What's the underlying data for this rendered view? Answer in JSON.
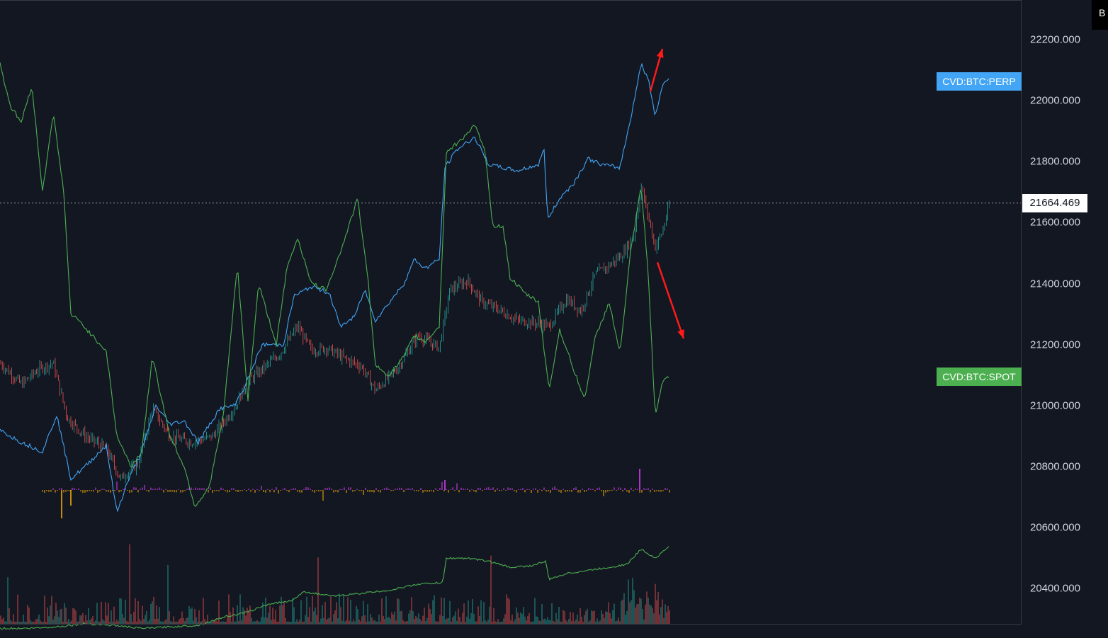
{
  "chart_data": {
    "type": "line",
    "y_axis": {
      "ticks": [
        "22200.000",
        "22000.000",
        "21800.000",
        "21600.000",
        "21400.000",
        "21200.000",
        "21000.000",
        "20800.000",
        "20600.000",
        "20400.000"
      ],
      "range": [
        20250,
        22330
      ]
    },
    "last_price": {
      "value": 21664.469,
      "label": "21664.469"
    },
    "corner_label": "B",
    "price_candles": {
      "type": "candlestick",
      "series_color_up": "#26a69a",
      "series_color_down": "#ef5350",
      "approx_close_path": [
        [
          0,
          21140
        ],
        [
          30,
          21070
        ],
        [
          55,
          21120
        ],
        [
          75,
          21140
        ],
        [
          95,
          20960
        ],
        [
          120,
          20900
        ],
        [
          150,
          20860
        ],
        [
          170,
          20760
        ],
        [
          195,
          20810
        ],
        [
          215,
          20990
        ],
        [
          240,
          20900
        ],
        [
          270,
          20880
        ],
        [
          300,
          20900
        ],
        [
          330,
          20990
        ],
        [
          350,
          21080
        ],
        [
          370,
          21120
        ],
        [
          395,
          21170
        ],
        [
          420,
          21260
        ],
        [
          440,
          21180
        ],
        [
          460,
          21190
        ],
        [
          490,
          21150
        ],
        [
          510,
          21130
        ],
        [
          530,
          21050
        ],
        [
          560,
          21120
        ],
        [
          590,
          21230
        ],
        [
          620,
          21190
        ],
        [
          635,
          21380
        ],
        [
          660,
          21410
        ],
        [
          680,
          21340
        ],
        [
          700,
          21320
        ],
        [
          730,
          21280
        ],
        [
          760,
          21270
        ],
        [
          775,
          21260
        ],
        [
          800,
          21350
        ],
        [
          820,
          21310
        ],
        [
          840,
          21430
        ],
        [
          860,
          21460
        ],
        [
          880,
          21500
        ],
        [
          895,
          21560
        ],
        [
          905,
          21720
        ],
        [
          925,
          21520
        ],
        [
          935,
          21570
        ],
        [
          945,
          21660
        ]
      ]
    },
    "series": [
      {
        "name": "CVD:BTC:PERP",
        "color": "#42a5f5",
        "points": [
          [
            0,
            20920
          ],
          [
            30,
            20880
          ],
          [
            60,
            20850
          ],
          [
            80,
            20970
          ],
          [
            100,
            20760
          ],
          [
            120,
            20800
          ],
          [
            150,
            20870
          ],
          [
            165,
            20650
          ],
          [
            180,
            20750
          ],
          [
            200,
            20850
          ],
          [
            220,
            21000
          ],
          [
            240,
            20940
          ],
          [
            260,
            20950
          ],
          [
            280,
            20880
          ],
          [
            310,
            20990
          ],
          [
            330,
            21000
          ],
          [
            345,
            21060
          ],
          [
            370,
            21200
          ],
          [
            400,
            21200
          ],
          [
            415,
            21360
          ],
          [
            440,
            21390
          ],
          [
            465,
            21370
          ],
          [
            480,
            21260
          ],
          [
            500,
            21290
          ],
          [
            515,
            21380
          ],
          [
            530,
            21280
          ],
          [
            550,
            21340
          ],
          [
            570,
            21400
          ],
          [
            585,
            21480
          ],
          [
            600,
            21450
          ],
          [
            620,
            21480
          ],
          [
            628,
            21780
          ],
          [
            645,
            21840
          ],
          [
            670,
            21880
          ],
          [
            690,
            21790
          ],
          [
            710,
            21780
          ],
          [
            730,
            21770
          ],
          [
            760,
            21790
          ],
          [
            768,
            21840
          ],
          [
            773,
            21610
          ],
          [
            790,
            21680
          ],
          [
            810,
            21730
          ],
          [
            830,
            21810
          ],
          [
            850,
            21790
          ],
          [
            875,
            21780
          ],
          [
            890,
            21940
          ],
          [
            905,
            22120
          ],
          [
            915,
            22070
          ],
          [
            925,
            21950
          ],
          [
            935,
            22050
          ],
          [
            945,
            22080
          ]
        ]
      },
      {
        "name": "CVD:BTC:SPOT",
        "color": "#4caf50",
        "points": [
          [
            0,
            22120
          ],
          [
            15,
            21980
          ],
          [
            30,
            21930
          ],
          [
            45,
            22050
          ],
          [
            60,
            21700
          ],
          [
            75,
            21960
          ],
          [
            90,
            21700
          ],
          [
            100,
            21300
          ],
          [
            115,
            21270
          ],
          [
            130,
            21230
          ],
          [
            150,
            21180
          ],
          [
            165,
            20900
          ],
          [
            185,
            20800
          ],
          [
            200,
            20850
          ],
          [
            215,
            21160
          ],
          [
            240,
            20900
          ],
          [
            260,
            20800
          ],
          [
            275,
            20670
          ],
          [
            295,
            20730
          ],
          [
            315,
            20960
          ],
          [
            335,
            21460
          ],
          [
            350,
            21020
          ],
          [
            365,
            21400
          ],
          [
            390,
            21200
          ],
          [
            405,
            21450
          ],
          [
            420,
            21550
          ],
          [
            440,
            21400
          ],
          [
            460,
            21380
          ],
          [
            480,
            21500
          ],
          [
            505,
            21680
          ],
          [
            520,
            21400
          ],
          [
            530,
            21130
          ],
          [
            550,
            21100
          ],
          [
            570,
            21160
          ],
          [
            585,
            21230
          ],
          [
            600,
            21210
          ],
          [
            620,
            21260
          ],
          [
            630,
            21830
          ],
          [
            650,
            21870
          ],
          [
            670,
            21920
          ],
          [
            685,
            21830
          ],
          [
            695,
            21590
          ],
          [
            710,
            21590
          ],
          [
            720,
            21420
          ],
          [
            740,
            21370
          ],
          [
            760,
            21340
          ],
          [
            775,
            21050
          ],
          [
            790,
            21250
          ],
          [
            805,
            21150
          ],
          [
            825,
            21020
          ],
          [
            840,
            21220
          ],
          [
            860,
            21340
          ],
          [
            875,
            21170
          ],
          [
            890,
            21500
          ],
          [
            905,
            21720
          ],
          [
            915,
            21430
          ],
          [
            925,
            20960
          ],
          [
            935,
            21080
          ],
          [
            945,
            21100
          ]
        ]
      }
    ],
    "lower_pane": {
      "volume_bars": {
        "up_color": "#26a69a",
        "down_color": "#ef5350"
      },
      "cumulative_line": {
        "color": "#4caf50",
        "points": [
          [
            0,
            20270
          ],
          [
            40,
            20270
          ],
          [
            80,
            20275
          ],
          [
            120,
            20285
          ],
          [
            160,
            20280
          ],
          [
            200,
            20270
          ],
          [
            240,
            20275
          ],
          [
            280,
            20280
          ],
          [
            320,
            20310
          ],
          [
            345,
            20320
          ],
          [
            380,
            20350
          ],
          [
            410,
            20360
          ],
          [
            430,
            20390
          ],
          [
            470,
            20375
          ],
          [
            510,
            20385
          ],
          [
            550,
            20395
          ],
          [
            590,
            20415
          ],
          [
            625,
            20420
          ],
          [
            630,
            20500
          ],
          [
            660,
            20500
          ],
          [
            690,
            20490
          ],
          [
            720,
            20470
          ],
          [
            750,
            20475
          ],
          [
            770,
            20490
          ],
          [
            775,
            20430
          ],
          [
            800,
            20450
          ],
          [
            830,
            20460
          ],
          [
            860,
            20470
          ],
          [
            885,
            20480
          ],
          [
            905,
            20530
          ],
          [
            925,
            20500
          ],
          [
            945,
            20540
          ]
        ]
      },
      "delta_markers": {
        "positive_color": "#e040fb",
        "negative_color": "#ffb300"
      }
    },
    "annotations": [
      {
        "type": "arrow",
        "color": "#ff1a1a",
        "direction": "up",
        "from": [
          918,
          22030
        ],
        "to": [
          935,
          22170
        ]
      },
      {
        "type": "arrow",
        "color": "#ff1a1a",
        "direction": "down",
        "from": [
          928,
          21470
        ],
        "to": [
          965,
          21220
        ]
      }
    ],
    "legend_tags": [
      {
        "label": "CVD:BTC:PERP",
        "color": "#42a5f5",
        "value": 22063
      },
      {
        "label": "CVD:BTC:SPOT",
        "color": "#4caf50",
        "value": 21096
      }
    ],
    "grid": false,
    "x_axis": {
      "ticks": []
    }
  }
}
